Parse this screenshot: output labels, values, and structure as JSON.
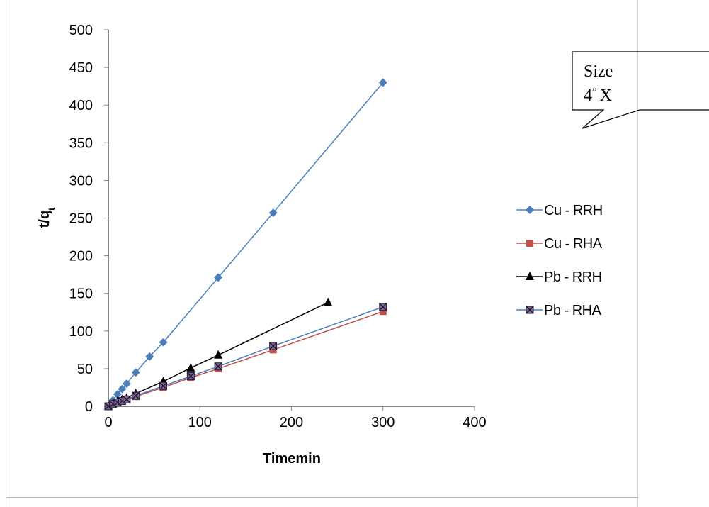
{
  "chart_data": {
    "type": "line",
    "xlabel": "Timemin",
    "ylabel": "t/q",
    "ylabel_subscript": "t",
    "xlim": [
      0,
      400
    ],
    "ylim": [
      0,
      500
    ],
    "x_ticks": [
      "0",
      "100",
      "200",
      "300",
      "400"
    ],
    "y_ticks": [
      "0",
      "50",
      "100",
      "150",
      "200",
      "250",
      "300",
      "350",
      "400",
      "450",
      "500"
    ],
    "grid": false,
    "legend_position": "right",
    "series": [
      {
        "name": "Cu - RRH",
        "color": "#4a7ebb",
        "marker": "diamond",
        "x": [
          0,
          5,
          10,
          15,
          20,
          30,
          45,
          60,
          120,
          180,
          300
        ],
        "y": [
          0,
          8,
          16,
          23,
          30,
          45,
          66,
          85,
          171,
          257,
          430
        ]
      },
      {
        "name": "Cu - RHA",
        "color": "#c0504d",
        "marker": "square",
        "x": [
          0,
          5,
          10,
          15,
          20,
          30,
          60,
          90,
          120,
          180,
          300
        ],
        "y": [
          0,
          3,
          5,
          7,
          9,
          13,
          25,
          38,
          50,
          75,
          126
        ]
      },
      {
        "name": "Pb - RRH",
        "color": "#000000",
        "marker": "triangle",
        "x": [
          0,
          5,
          10,
          15,
          20,
          30,
          60,
          90,
          120,
          240
        ],
        "y": [
          0,
          4,
          7,
          9,
          11,
          17,
          33,
          51,
          68,
          138
        ]
      },
      {
        "name": "Pb - RHA",
        "color": "#4a7ebb",
        "marker": "square-x",
        "x": [
          0,
          5,
          10,
          15,
          20,
          30,
          60,
          90,
          120,
          180,
          300
        ],
        "y": [
          0,
          3,
          5,
          7,
          9,
          14,
          27,
          40,
          53,
          80,
          132
        ]
      }
    ]
  },
  "callout": {
    "line1": "Size",
    "line2": "4",
    "line2_sup": "”",
    "line2_rest": "X"
  }
}
